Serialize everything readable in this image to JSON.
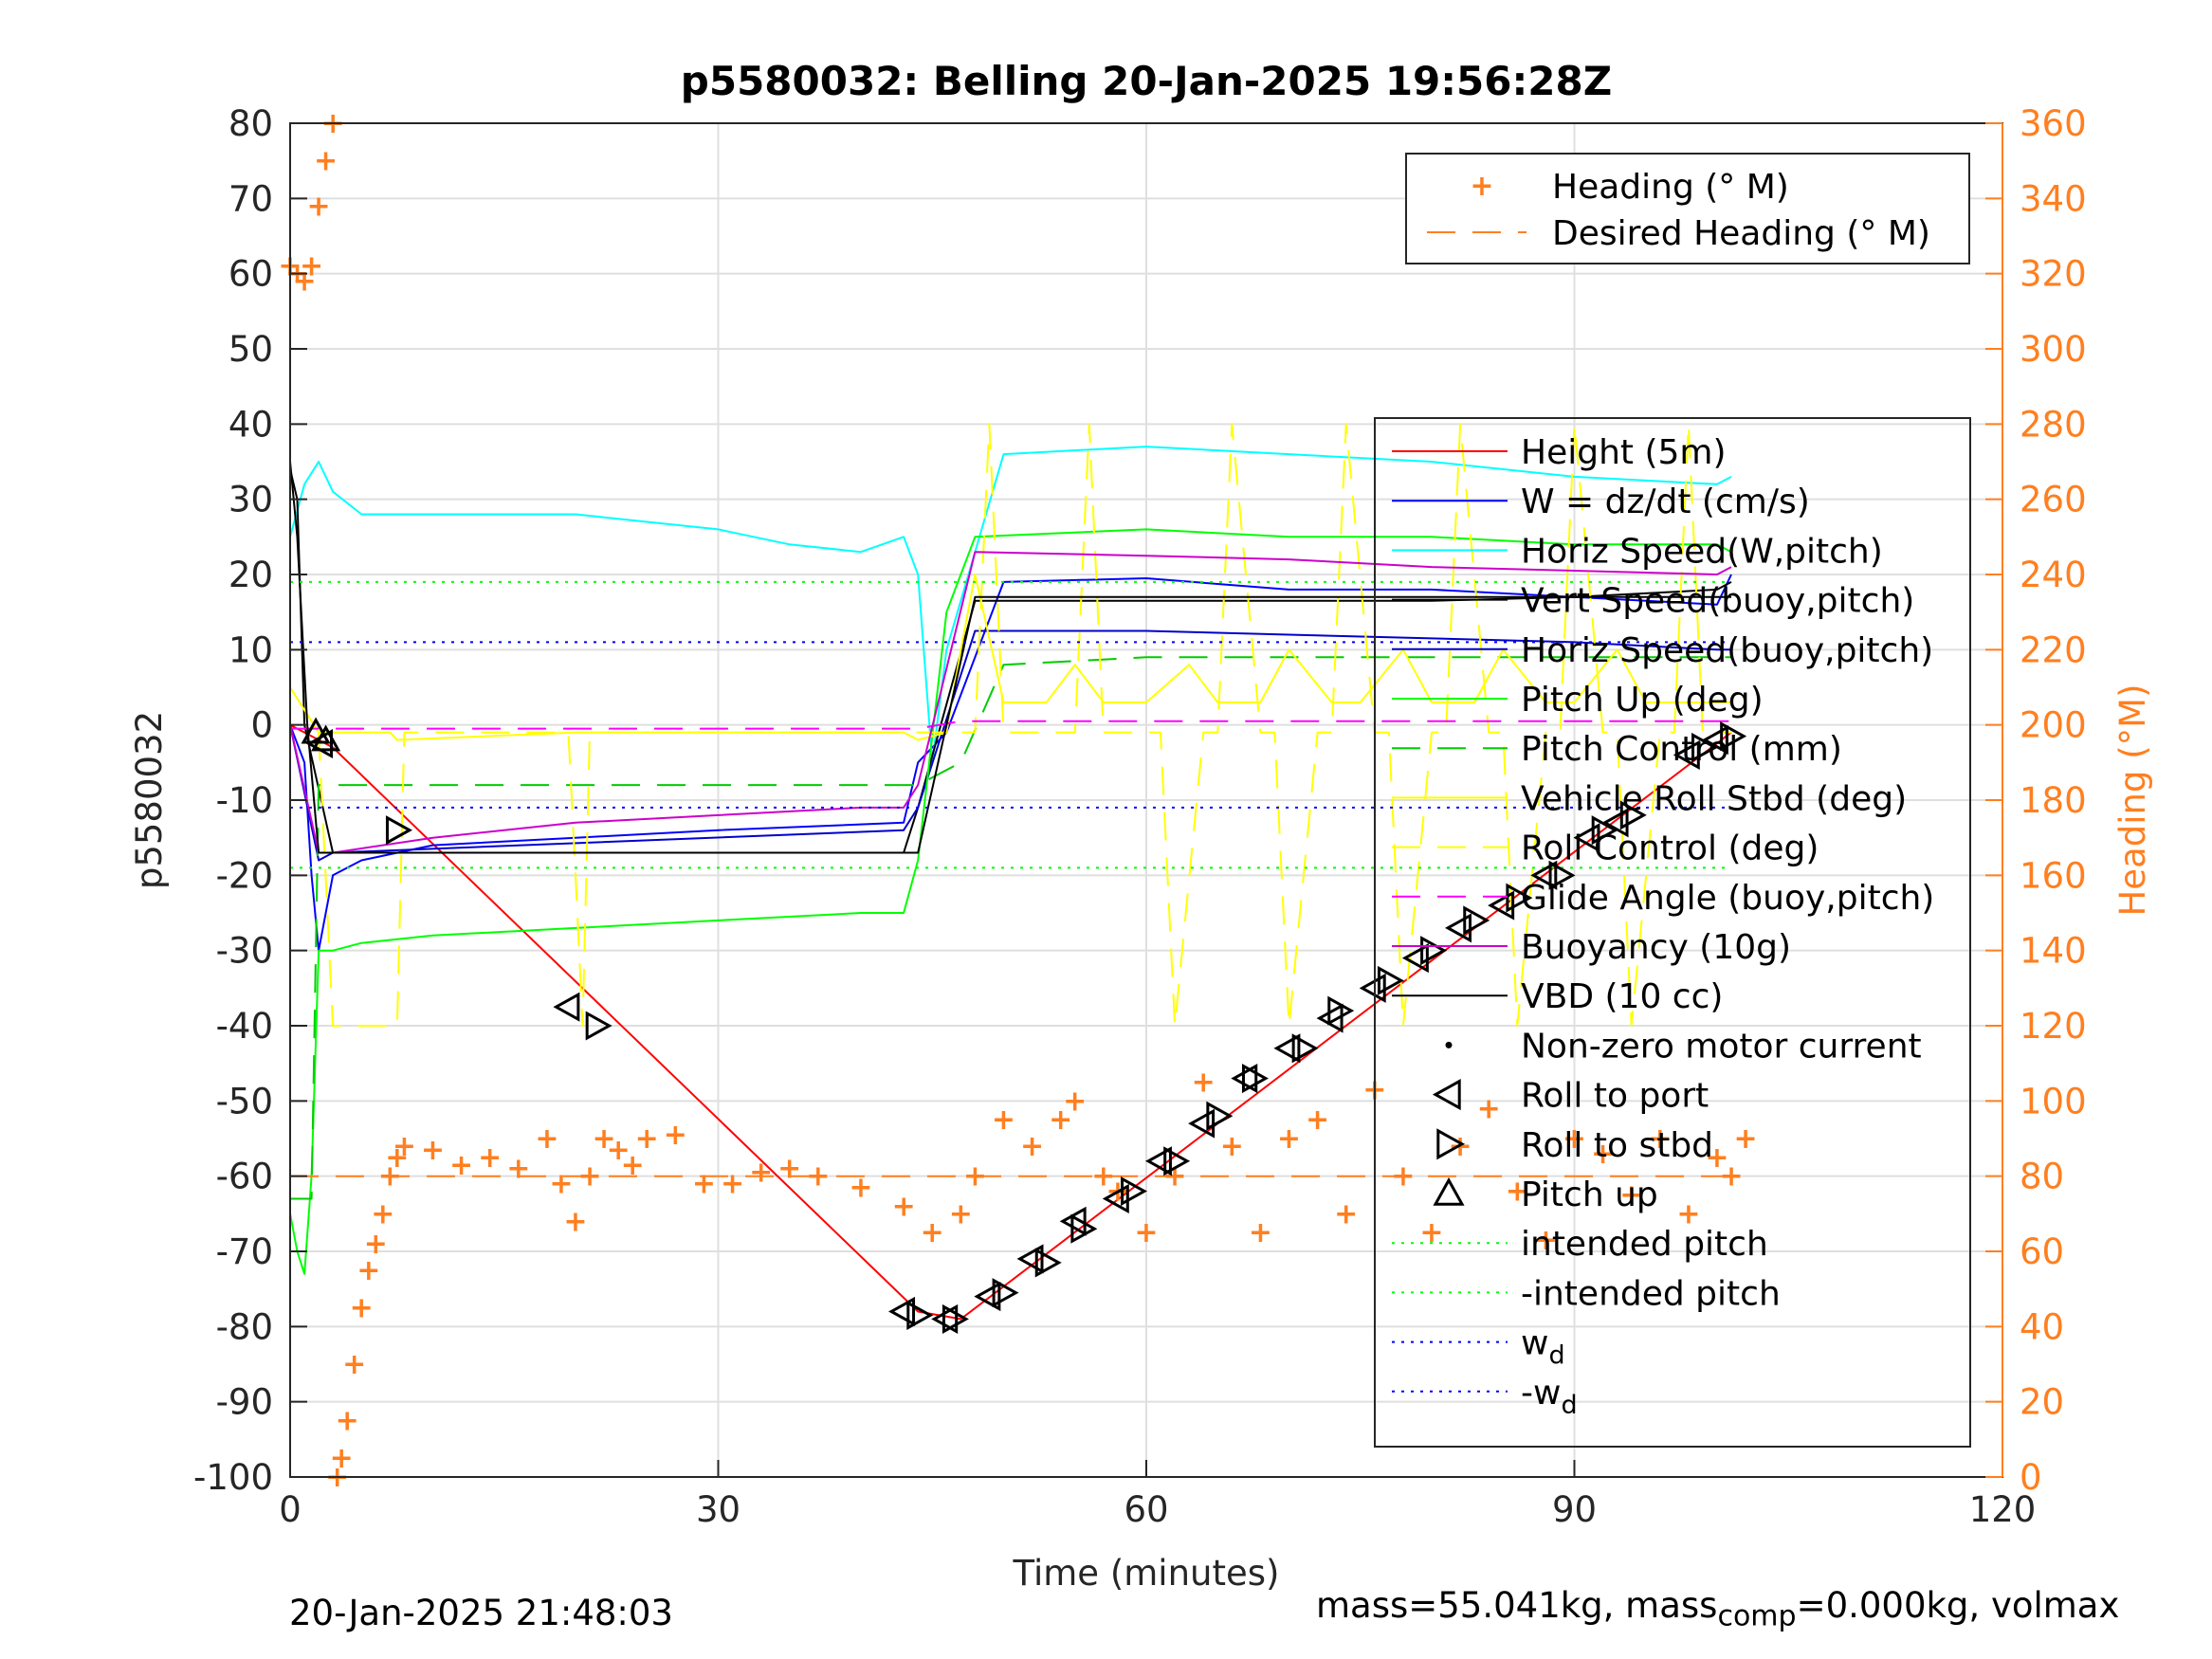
{
  "chart_data": {
    "type": "line",
    "title": "p5580032: Belling 20-Jan-2025 19:56:28Z",
    "xlabel": "Time (minutes)",
    "ylabel_left": "p5580032",
    "ylabel_right": "Heading (°M)",
    "xlim": [
      0,
      120
    ],
    "ylim_left": [
      -100,
      80
    ],
    "ylim_right": [
      0,
      360
    ],
    "xticks": [
      "0",
      "30",
      "60",
      "90",
      "120"
    ],
    "yticks_left": [
      "80",
      "70",
      "60",
      "50",
      "40",
      "30",
      "20",
      "10",
      "0",
      "-10",
      "-20",
      "-30",
      "-40",
      "-50",
      "-60",
      "-70",
      "-80",
      "-90",
      "-100"
    ],
    "yticks_right": [
      "360",
      "340",
      "320",
      "300",
      "280",
      "260",
      "240",
      "220",
      "200",
      "180",
      "160",
      "140",
      "120",
      "100",
      "80",
      "60",
      "40",
      "20",
      "0"
    ],
    "grid": true,
    "colors": {
      "height": "#ff0000",
      "w": "#0000ff",
      "horiz_w": "#00ffff",
      "vert_buoy": "#000000",
      "horiz_buoy": "#0000cc",
      "pitch": "#00ff00",
      "pitch_ctl": "#00cc00",
      "roll": "#ffff00",
      "glide": "#ff00ff",
      "buoyancy": "#cc00cc",
      "vbd": "#000000",
      "heading": "#ff7f1f",
      "green_dot": "#00ff00",
      "blue_dot": "#0000ff"
    },
    "legend_heading": {
      "placement": "top-right",
      "entries": [
        "Heading (° M)",
        "Desired Heading (° M)"
      ]
    },
    "legend_main": {
      "placement": "right",
      "entries": [
        "Height (5m)",
        "W = dz/dt (cm/s)",
        "Horiz Speed(W,pitch)",
        "Vert Speed(buoy,pitch)",
        "Horiz Speed(buoy,pitch)",
        "Pitch Up (deg)",
        "Pitch Control (mm)",
        "Vehicle Roll Stbd (deg)",
        "Roll Control (deg)",
        "Glide Angle (buoy,pitch)",
        "Buoyancy (10g)",
        "VBD (10 cc)",
        "Non-zero motor current",
        "Roll to port",
        "Roll to stbd",
        "Pitch up",
        "intended pitch",
        "-intended pitch",
        "w",
        "-w"
      ],
      "subscript": "d"
    },
    "series": [
      {
        "name": "Height (5m)",
        "x": [
          0,
          2,
          3,
          44,
          47,
          101
        ],
        "y": [
          0,
          -2,
          -3,
          -78,
          -79,
          -1
        ]
      },
      {
        "name": "W = dz/dt (cm/s)",
        "x": [
          0,
          1,
          1.5,
          2,
          3,
          5,
          10,
          20,
          30,
          43,
          44,
          46,
          50,
          60,
          70,
          80,
          90,
          100,
          101
        ],
        "y": [
          0,
          -5,
          -20,
          -30,
          -20,
          -18,
          -16,
          -15,
          -14,
          -13,
          -5,
          -1,
          19,
          19.5,
          18,
          18,
          17,
          16,
          20
        ]
      },
      {
        "name": "Horiz Speed(W,pitch)",
        "x": [
          0,
          1,
          2,
          3,
          5,
          10,
          20,
          30,
          35,
          40,
          43,
          44,
          45,
          46,
          50,
          60,
          70,
          80,
          90,
          100,
          101
        ],
        "y": [
          25,
          32,
          35,
          31,
          28,
          28,
          28,
          26,
          24,
          23,
          25,
          20,
          -5,
          10,
          36,
          37,
          36,
          35,
          33,
          32,
          33
        ]
      },
      {
        "name": "Vert Speed(buoy,pitch)",
        "x": [
          0,
          0.5,
          1,
          3,
          10,
          20,
          30,
          43,
          44,
          48,
          60,
          80,
          90,
          100,
          101
        ],
        "y": [
          34,
          30,
          0,
          -17,
          -17,
          -17,
          -17,
          -17,
          -11,
          16.5,
          16.5,
          16.5,
          17,
          18,
          19
        ]
      },
      {
        "name": "Horiz Speed(buoy,pitch)",
        "x": [
          0,
          2,
          3,
          43,
          44,
          48,
          60,
          70,
          80,
          90,
          100,
          101
        ],
        "y": [
          0,
          -18,
          -17,
          -14,
          -11,
          12.5,
          12.5,
          12,
          11.5,
          11,
          10,
          10
        ]
      },
      {
        "name": "Pitch Up (deg)",
        "x": [
          0,
          0.5,
          1,
          1.5,
          2,
          3,
          5,
          10,
          20,
          30,
          40,
          43,
          44,
          46,
          48,
          60,
          70,
          80,
          90,
          100,
          101
        ],
        "y": [
          -65,
          -70,
          -73,
          -60,
          -30,
          -30,
          -29,
          -28,
          -27,
          -26,
          -25,
          -25,
          -18,
          15,
          25,
          26,
          25,
          25,
          24,
          24,
          23
        ]
      },
      {
        "name": "Pitch Control (mm)",
        "x": [
          0,
          1.5,
          2,
          43,
          44,
          47,
          50,
          60,
          70,
          80,
          90,
          101
        ],
        "y": [
          -63,
          -63,
          -8,
          -8,
          -8,
          -5,
          8,
          9,
          9,
          9,
          9,
          9
        ]
      },
      {
        "name": "Vehicle Roll Stbd (deg)",
        "x": [
          0,
          2,
          3,
          7,
          7.5,
          20,
          21,
          40,
          43,
          44,
          46,
          47,
          48,
          50,
          53,
          55,
          57,
          60,
          63,
          65,
          68,
          70,
          73,
          75,
          78,
          80,
          83,
          85,
          88,
          90,
          93,
          95,
          98,
          100,
          101
        ],
        "y": [
          5,
          -1,
          -1,
          -1,
          -2,
          -1,
          -1,
          -1,
          -1,
          -2,
          -1,
          10,
          20,
          3,
          3,
          8,
          3,
          3,
          8,
          3,
          3,
          10,
          3,
          3,
          10,
          3,
          3,
          10,
          3,
          3,
          10,
          3,
          3,
          3,
          3
        ]
      },
      {
        "name": "Roll Control (deg)",
        "x": [
          2,
          3,
          5,
          7.5,
          8,
          19.5,
          20,
          20.5,
          21,
          43,
          48,
          49,
          50,
          55,
          56,
          57,
          60,
          61,
          62,
          64,
          65,
          66,
          68,
          69,
          70,
          72,
          73,
          74,
          76,
          77,
          78,
          80,
          81,
          82,
          84,
          85,
          86,
          88,
          89,
          90,
          92,
          93,
          94,
          96,
          97,
          98,
          99,
          100,
          101
        ],
        "y": [
          -1,
          -40,
          -40,
          -40,
          -1,
          -1,
          -20,
          -40,
          -1,
          -1,
          -1,
          40,
          -1,
          -1,
          40,
          -1,
          -1,
          -1,
          -40,
          -1,
          -1,
          40,
          -1,
          -1,
          -40,
          -1,
          -1,
          40,
          -1,
          -1,
          -40,
          -1,
          -1,
          40,
          -1,
          -1,
          -40,
          -1,
          -1,
          40,
          -1,
          -1,
          -40,
          -1,
          -1,
          40,
          -1,
          -1,
          -1
        ]
      },
      {
        "name": "Glide Angle (buoy,pitch)",
        "x": [
          0,
          44,
          47,
          101
        ],
        "y": [
          -0.5,
          -0.5,
          0.5,
          0.5
        ]
      },
      {
        "name": "Buoyancy (10g)",
        "x": [
          0,
          2,
          3,
          10,
          20,
          30,
          40,
          43,
          44,
          48,
          60,
          70,
          80,
          90,
          100,
          101
        ],
        "y": [
          0,
          -17,
          -17,
          -15,
          -13,
          -12,
          -11,
          -11,
          -8,
          23,
          22.5,
          22,
          21,
          20.5,
          20,
          21
        ]
      },
      {
        "name": "VBD (10 cc)",
        "x": [
          0,
          0.5,
          1.2,
          2,
          43,
          44,
          48,
          101
        ],
        "y": [
          35,
          25,
          0,
          -17,
          -17,
          -17,
          17,
          17
        ]
      },
      {
        "name": "intended pitch",
        "x": [
          0,
          101
        ],
        "y": [
          19,
          19
        ]
      },
      {
        "name": "-intended pitch",
        "x": [
          0,
          101
        ],
        "y": [
          -19,
          -19
        ]
      },
      {
        "name": "w",
        "x": [
          0,
          101
        ],
        "y": [
          11,
          11
        ]
      },
      {
        "name": "-w",
        "x": [
          0,
          101
        ],
        "y": [
          -11,
          -11
        ]
      },
      {
        "name": "Heading (° M)",
        "x": [
          0,
          0.5,
          1,
          1.5,
          2,
          2.5,
          3,
          3.3,
          3.6,
          4,
          4.5,
          5,
          5.5,
          6,
          6.5,
          7,
          7.5,
          8,
          10,
          12,
          14,
          16,
          18,
          19,
          20,
          21,
          22,
          23,
          24,
          25,
          27,
          29,
          31,
          33,
          35,
          37,
          40,
          43,
          45,
          47,
          48,
          50,
          52,
          54,
          55,
          57,
          58,
          60,
          62,
          64,
          66,
          68,
          70,
          72,
          74,
          76,
          78,
          80,
          82,
          84,
          86,
          88,
          90,
          92,
          94,
          96,
          98,
          100,
          101,
          102
        ],
        "y": [
          322,
          320,
          318,
          322,
          338,
          350,
          360,
          0,
          5,
          15,
          30,
          45,
          55,
          62,
          70,
          80,
          85,
          88,
          87,
          83,
          85,
          82,
          90,
          78,
          68,
          80,
          90,
          87,
          83,
          90,
          91,
          78,
          78,
          81,
          82,
          80,
          77,
          72,
          65,
          70,
          80,
          95,
          88,
          95,
          100,
          80,
          76,
          65,
          80,
          105,
          88,
          65,
          90,
          95,
          70,
          103,
          80,
          65,
          88,
          98,
          76,
          63,
          90,
          86,
          75,
          90,
          70,
          85,
          80,
          90
        ]
      },
      {
        "name": "Desired Heading (° M)",
        "x": [
          0,
          102
        ],
        "y": [
          80,
          80
        ]
      }
    ],
    "markers": {
      "roll_to_port": {
        "x": [
          2.2,
          19.5,
          43,
          46,
          49,
          52,
          55,
          58,
          61,
          64,
          67,
          70,
          73,
          76,
          79,
          82,
          85,
          88,
          91,
          93,
          98,
          100
        ],
        "y": [
          -2.5,
          -37.5,
          -78,
          -79,
          -76,
          -71,
          -66,
          -63,
          -58,
          -53,
          -47,
          -43,
          -39,
          -35,
          -31,
          -27,
          -24,
          -20,
          -15,
          -13,
          -4,
          -2
        ]
      },
      "roll_to_stbd": {
        "x": [
          7.5,
          21.5,
          44,
          46.5,
          50,
          53,
          55.5,
          59,
          62,
          65,
          67.5,
          71,
          73.5,
          77,
          80,
          83,
          86,
          89,
          92,
          94,
          99,
          101
        ],
        "y": [
          -14,
          -40,
          -78.5,
          -79,
          -75.5,
          -71.5,
          -67,
          -62,
          -58,
          -52,
          -47,
          -43,
          -38,
          -34,
          -30,
          -26,
          -23,
          -20,
          -14,
          -12,
          -3,
          -1.5
        ]
      },
      "pitch_up": {
        "x": [
          1.8,
          2.5
        ],
        "y": [
          -1,
          -2
        ]
      }
    }
  },
  "footer": {
    "left": "20-Jan-2025 21:48:03",
    "right_prefix": "mass=55.041kg, mass",
    "right_sub": "comp",
    "right_suffix": "=0.000kg, volmax"
  }
}
